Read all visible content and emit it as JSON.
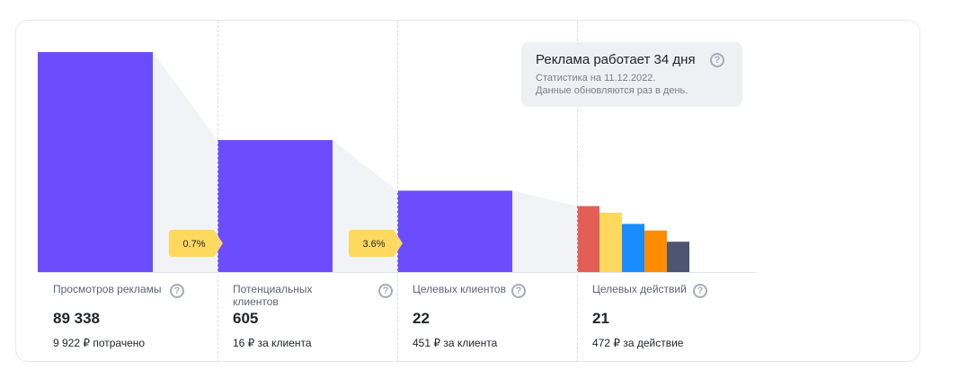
{
  "chart_data": {
    "type": "bar",
    "categories": [
      "Просмотров рекламы",
      "Потенциальных клиентов",
      "Целевых клиентов",
      "Целевых действий"
    ],
    "values": [
      89338,
      605,
      22,
      21
    ],
    "display_values": [
      "89 338",
      "605",
      "22",
      "21"
    ],
    "subtitles": [
      "9 922 ₽ потрачено",
      "16 ₽ за клиента",
      "451 ₽ за клиента",
      "472 ₽ за действие"
    ],
    "relative_heights": [
      1.0,
      0.6,
      0.37,
      0.3
    ],
    "conversions": [
      "0.7%",
      "3.6%"
    ],
    "actions_breakdown": [
      {
        "color": "#e35f55",
        "value": 1.0
      },
      {
        "color": "#ffd95e",
        "value": 0.9
      },
      {
        "color": "#1a8cff",
        "value": 0.73
      },
      {
        "color": "#ff8c00",
        "value": 0.63
      },
      {
        "color": "#4e5573",
        "value": 0.46
      }
    ],
    "colors": {
      "bar": "#6c4dfe",
      "connector": "#f2f3f6",
      "badge": "#ffd95e",
      "baseline": "#e2e4ea"
    }
  },
  "tooltip": {
    "title": "Реклама работает 34 дня",
    "line1": "Статистика на 11.12.2022.",
    "line2": "Данные обновляются раз в день."
  },
  "help_glyph": "?"
}
